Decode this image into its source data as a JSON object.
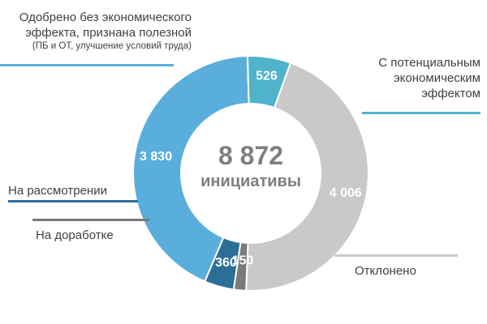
{
  "chart_data": {
    "type": "pie",
    "donut": true,
    "center": {
      "total": "8 872",
      "caption": "инициативы"
    },
    "slices": [
      {
        "label_lines": [
          "Одобрено без экономического",
          "эффекта, признана полезной",
          "(ПБ и ОТ, улучшение условий труда)"
        ],
        "value": 3830,
        "value_label": "3 830",
        "color": "#5aaedc"
      },
      {
        "label_lines": [
          "С потенциальным",
          "экономическим",
          "эффектом"
        ],
        "value": 526,
        "value_label": "526",
        "color": "#4fb3cc"
      },
      {
        "label_lines": [
          "Отклонено"
        ],
        "value": 4006,
        "value_label": "4 006",
        "color": "#c9c9c9"
      },
      {
        "label_lines": [
          "На доработке"
        ],
        "value": 150,
        "value_label": "150",
        "color": "#7a7a7a"
      },
      {
        "label_lines": [
          "На рассмотрении"
        ],
        "value": 360,
        "value_label": "360",
        "color": "#2b6f97"
      }
    ]
  }
}
